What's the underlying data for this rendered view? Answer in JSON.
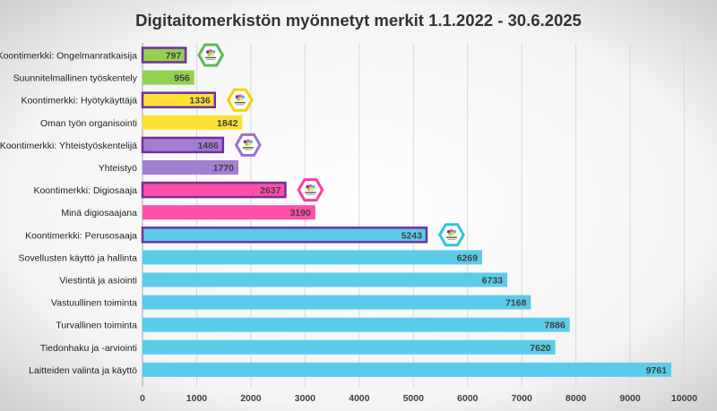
{
  "chart_data": {
    "type": "bar",
    "orientation": "horizontal",
    "title": "Digitaitomerkistön myönnetyt merkit 1.1.2022 - 30.6.2025",
    "xlabel": "",
    "ylabel": "",
    "xlim": [
      0,
      10000
    ],
    "x_ticks": [
      0,
      1000,
      2000,
      3000,
      4000,
      5000,
      6000,
      7000,
      8000,
      9000,
      10000
    ],
    "grid": "vertical",
    "legend": "none",
    "categories": [
      "Koontimerkki: Ongelmanratkaisija",
      "Suunnitelmallinen työskentely",
      "Koontimerkki: Hyötykäyttäjä",
      "Oman työn organisointi",
      "Koontimerkki: Yhteistyöskentelijä",
      "Yhteistyö",
      "Koontimerkki: Digiosaaja",
      "Minä digiosaajana",
      "Koontimerkki: Perusosaaja",
      "Sovellusten käyttö ja hallinta",
      "Viestintä ja asiointi",
      "Vastuullinen toiminta",
      "Turvallinen toiminta",
      "Tiedonhaku ja -arviointi",
      "Laitteiden valinta ja käyttö"
    ],
    "values": [
      797,
      956,
      1336,
      1842,
      1486,
      1770,
      2637,
      3190,
      5243,
      6269,
      6733,
      7168,
      7886,
      7620,
      9761
    ],
    "bar_colors": [
      "#92d050",
      "#92d050",
      "#ffe135",
      "#ffe135",
      "#a27ed4",
      "#a27ed4",
      "#ff4fa7",
      "#ff4fa7",
      "#5bcbea",
      "#5bcbea",
      "#5bcbea",
      "#5bcbea",
      "#5bcbea",
      "#5bcbea",
      "#5bcbea"
    ],
    "outlined": [
      true,
      false,
      true,
      false,
      true,
      false,
      true,
      false,
      true,
      false,
      false,
      false,
      false,
      false,
      false
    ],
    "outline_color": "#7030a0",
    "badges": [
      {
        "row": 0,
        "color": "#5cb85c",
        "icon": "ongelmanratkaisija-badge-icon"
      },
      {
        "row": 2,
        "color": "#f5d000",
        "icon": "hyotykayttaja-badge-icon"
      },
      {
        "row": 4,
        "color": "#9b6fd0",
        "icon": "yhteistyoskentelija-badge-icon"
      },
      {
        "row": 6,
        "color": "#ff3d9e",
        "icon": "digiosaaja-badge-icon"
      },
      {
        "row": 8,
        "color": "#2ec4e6",
        "icon": "perusosaaja-badge-icon"
      }
    ]
  }
}
